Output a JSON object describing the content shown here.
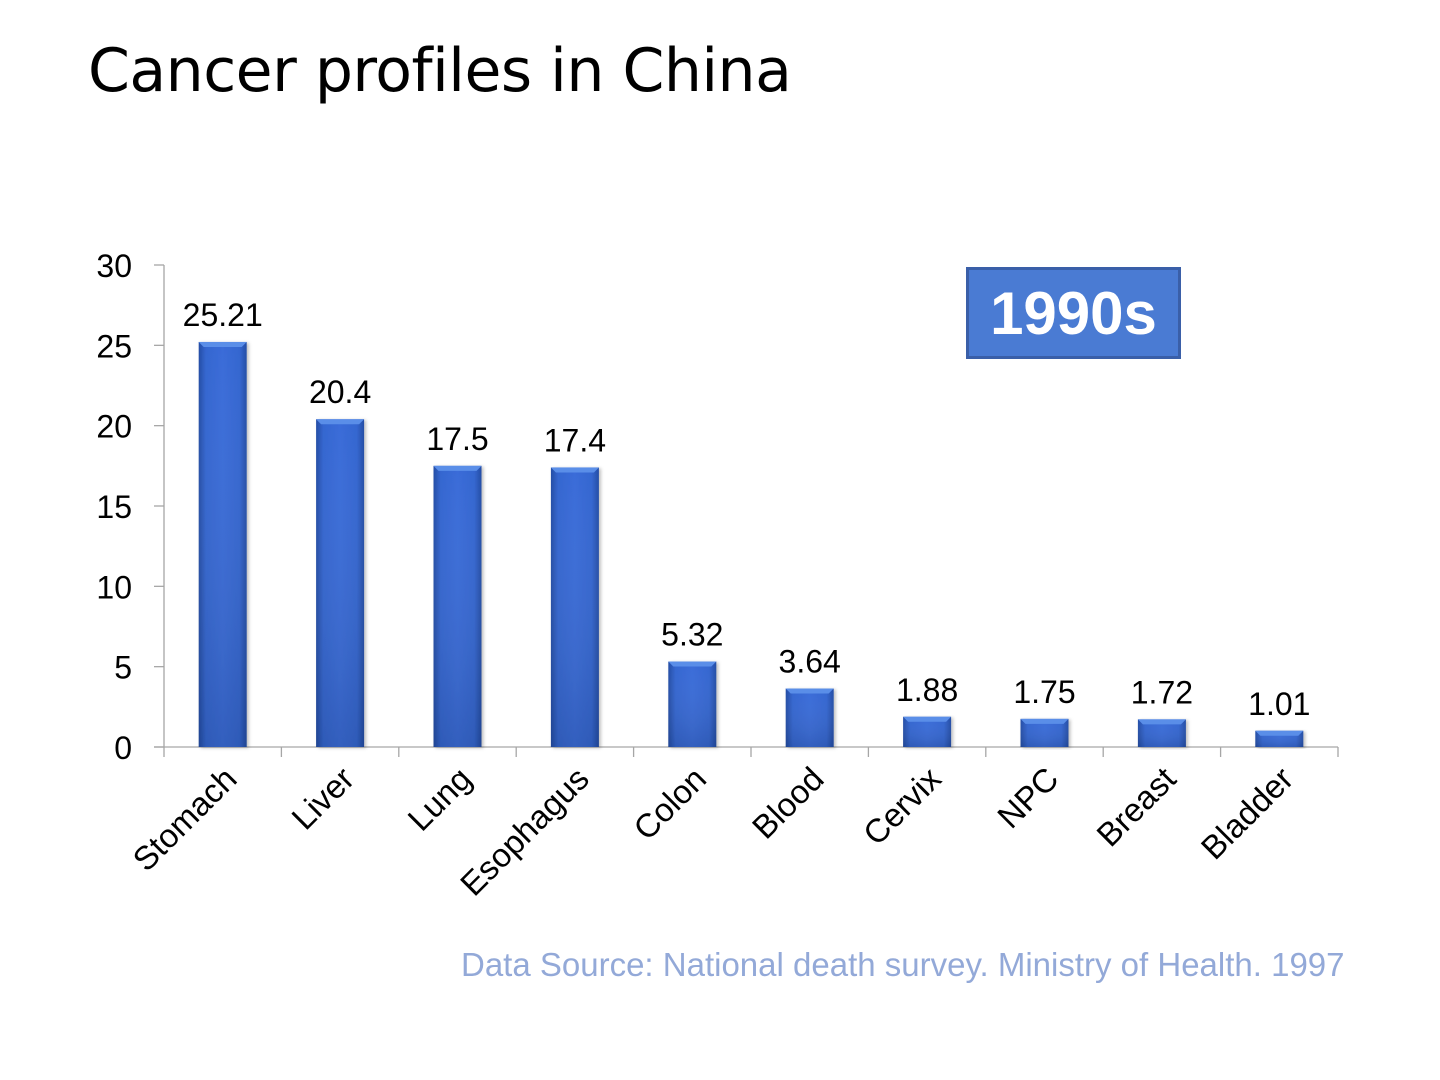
{
  "title": "Cancer profiles in China",
  "badge": "1990s",
  "source": "Data Source: National death survey. Ministry of Health. 1997",
  "chart_data": {
    "type": "bar",
    "title": "Cancer profiles in China",
    "xlabel": "",
    "ylabel": "",
    "categories": [
      "Stomach",
      "Liver",
      "Lung",
      "Esophagus",
      "Colon",
      "Blood",
      "Cervix",
      "NPC",
      "Breast",
      "Bladder"
    ],
    "values": [
      25.21,
      20.4,
      17.5,
      17.4,
      5.32,
      3.64,
      1.88,
      1.75,
      1.72,
      1.01
    ],
    "data_labels": [
      "25.21",
      "20.4",
      "17.5",
      "17.4",
      "5.32",
      "3.64",
      "1.88",
      "1.75",
      "1.72",
      "1.01"
    ],
    "ylim": [
      0,
      30
    ],
    "yticks": [
      0,
      5,
      10,
      15,
      20,
      25,
      30
    ],
    "grid": false,
    "legend": "none",
    "annotation": "1990s",
    "colors": {
      "bar": "#2f5fc4",
      "bar_light": "#3f74dd",
      "bar_dark": "#244da5",
      "axis": "#a6a6a6",
      "text": "#000000"
    }
  }
}
